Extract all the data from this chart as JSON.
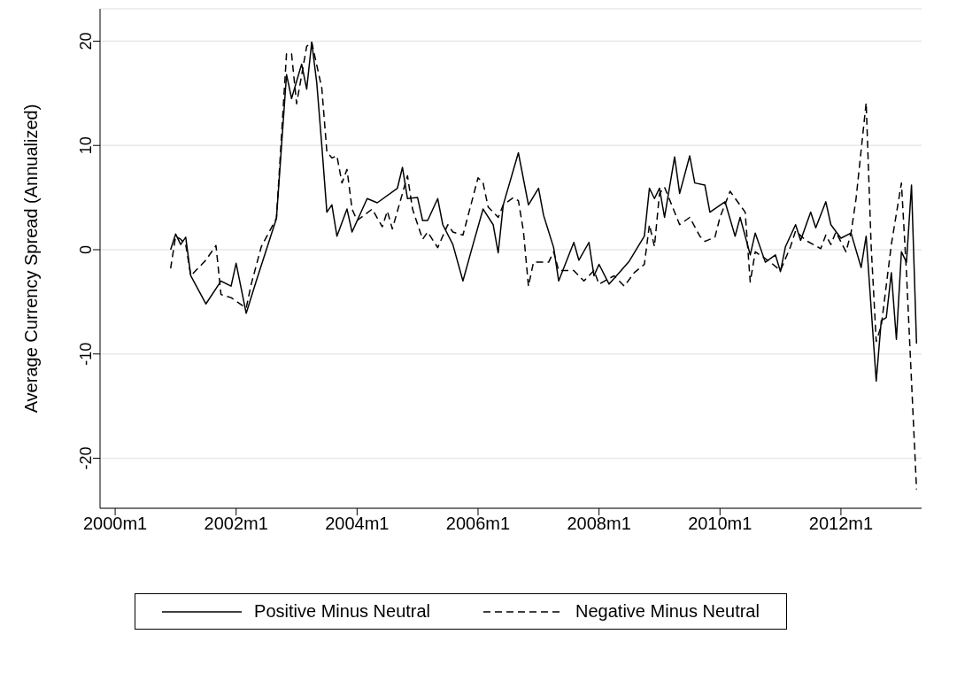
{
  "chart_data": {
    "type": "line",
    "ylabel": "Average Currency Spread (Annualized)",
    "xlim": [
      "1999-10",
      "2013-05"
    ],
    "xticks": [
      {
        "value": "2000-01",
        "label": "2000m1"
      },
      {
        "value": "2002-01",
        "label": "2002m1"
      },
      {
        "value": "2004-01",
        "label": "2004m1"
      },
      {
        "value": "2006-01",
        "label": "2006m1"
      },
      {
        "value": "2008-01",
        "label": "2008m1"
      },
      {
        "value": "2010-01",
        "label": "2010m1"
      },
      {
        "value": "2012-01",
        "label": "2012m1"
      }
    ],
    "ylim": [
      -24.8,
      23.1
    ],
    "yticks": [
      -20,
      -10,
      0,
      10,
      20
    ],
    "grid": "y",
    "legend": "bottom",
    "marker": "none",
    "series": [
      {
        "name": "Positive Minus Neutral",
        "color": "#000000",
        "line_style": "solid",
        "x": [
          "2000-12",
          "2001-01",
          "2001-02",
          "2001-03",
          "2001-04",
          "2001-07",
          "2001-10",
          "2001-12",
          "2002-01",
          "2002-03",
          "2002-05",
          "2002-07",
          "2002-09",
          "2002-11",
          "2002-12",
          "2003-02",
          "2003-03",
          "2003-04",
          "2003-05",
          "2003-06",
          "2003-07",
          "2003-08",
          "2003-09",
          "2003-11",
          "2003-12",
          "2004-03",
          "2004-05",
          "2004-09",
          "2004-10",
          "2004-11",
          "2005-01",
          "2005-02",
          "2005-03",
          "2005-05",
          "2005-06",
          "2005-08",
          "2005-10",
          "2005-12",
          "2006-02",
          "2006-04",
          "2006-05",
          "2006-06",
          "2006-09",
          "2006-11",
          "2007-01",
          "2007-02",
          "2007-04",
          "2007-05",
          "2007-08",
          "2007-09",
          "2007-11",
          "2007-12",
          "2008-01",
          "2008-03",
          "2008-05",
          "2008-07",
          "2008-10",
          "2008-11",
          "2008-12",
          "2009-01",
          "2009-02",
          "2009-04",
          "2009-05",
          "2009-07",
          "2009-08",
          "2009-10",
          "2009-11",
          "2010-02",
          "2010-04",
          "2010-05",
          "2010-07",
          "2010-08",
          "2010-10",
          "2010-12",
          "2011-01",
          "2011-02",
          "2011-04",
          "2011-05",
          "2011-07",
          "2011-08",
          "2011-10",
          "2011-11",
          "2012-01",
          "2012-03",
          "2012-05",
          "2012-06",
          "2012-08",
          "2012-09",
          "2012-10",
          "2012-11",
          "2012-12",
          "2013-01",
          "2013-02",
          "2013-03",
          "2013-04"
        ],
        "values": [
          0,
          1.5,
          0.5,
          1.2,
          -2.5,
          -5.2,
          -3,
          -3.5,
          -1.3,
          -6.1,
          -3,
          0,
          3,
          16.8,
          14.5,
          17.8,
          15.4,
          19.9,
          16,
          10,
          3.6,
          4.3,
          1.3,
          3.9,
          1.7,
          4.9,
          4.5,
          5.9,
          7.9,
          4.9,
          5,
          2.8,
          2.8,
          4.9,
          2.4,
          0.5,
          -3,
          0.5,
          3.9,
          2.4,
          -0.3,
          4.3,
          9.3,
          4.3,
          5.9,
          3.3,
          0.2,
          -3,
          0.7,
          -1,
          0.7,
          -2.5,
          -1.4,
          -3.3,
          -2.2,
          -1.1,
          1.3,
          5.9,
          4.9,
          5.9,
          3.1,
          8.9,
          5.4,
          9,
          6.4,
          6.2,
          3.6,
          4.6,
          1.3,
          3.1,
          -0.5,
          1.6,
          -1.2,
          -0.5,
          -2.1,
          0.3,
          2.4,
          0.9,
          3.6,
          2.1,
          4.6,
          2.4,
          1.1,
          1.6,
          -1.7,
          1.3,
          -12.6,
          -6.8,
          -6.5,
          -2.2,
          -8.6,
          -0.2,
          -1.2,
          6.2,
          -9
        ]
      },
      {
        "name": "Negative Minus Neutral",
        "color": "#000000",
        "line_style": "dashed",
        "x": [
          "2000-12",
          "2001-01",
          "2001-02",
          "2001-03",
          "2001-04",
          "2001-07",
          "2001-09",
          "2001-10",
          "2001-12",
          "2002-03",
          "2002-04",
          "2002-06",
          "2002-09",
          "2002-11",
          "2002-12",
          "2003-01",
          "2003-03",
          "2003-04",
          "2003-06",
          "2003-07",
          "2003-08",
          "2003-09",
          "2003-10",
          "2003-11",
          "2003-12",
          "2004-01",
          "2004-04",
          "2004-06",
          "2004-07",
          "2004-08",
          "2004-10",
          "2004-11",
          "2004-12",
          "2005-02",
          "2005-03",
          "2005-05",
          "2005-07",
          "2005-08",
          "2005-10",
          "2006-01",
          "2006-02",
          "2006-03",
          "2006-05",
          "2006-06",
          "2006-08",
          "2006-09",
          "2006-10",
          "2006-11",
          "2006-12",
          "2007-03",
          "2007-04",
          "2007-05",
          "2007-08",
          "2007-10",
          "2007-12",
          "2008-01",
          "2008-04",
          "2008-06",
          "2008-08",
          "2008-10",
          "2008-11",
          "2008-12",
          "2009-01",
          "2009-02",
          "2009-05",
          "2009-07",
          "2009-09",
          "2009-10",
          "2009-12",
          "2010-01",
          "2010-03",
          "2010-06",
          "2010-07",
          "2010-08",
          "2010-11",
          "2011-01",
          "2011-03",
          "2011-04",
          "2011-06",
          "2011-09",
          "2011-10",
          "2011-11",
          "2011-12",
          "2012-02",
          "2012-03",
          "2012-04",
          "2012-06",
          "2012-07",
          "2012-08",
          "2012-09",
          "2012-11",
          "2013-01",
          "2013-02",
          "2013-04"
        ],
        "values": [
          -1.8,
          1.3,
          1,
          0.5,
          -2.5,
          -1,
          0.4,
          -4.3,
          -4.6,
          -5.6,
          -3.3,
          0.3,
          3,
          18.8,
          18.8,
          14,
          19.5,
          19.9,
          15.5,
          9.4,
          8.8,
          9,
          6.4,
          7.7,
          3.9,
          2.8,
          3.9,
          2.2,
          3.7,
          2,
          5.4,
          7.1,
          3.9,
          1,
          1.7,
          0.2,
          2.4,
          1.7,
          1.4,
          6.9,
          6.4,
          4.1,
          3.1,
          4.3,
          5,
          4.7,
          1.8,
          -3.5,
          -1.2,
          -1.2,
          -0.2,
          -2,
          -2,
          -3,
          -2,
          -3.3,
          -2.5,
          -3.5,
          -2.2,
          -1.4,
          2.4,
          0.3,
          5.4,
          6,
          2.4,
          3.1,
          1.3,
          0.8,
          1.2,
          3.1,
          5.6,
          3.6,
          -3.1,
          -0.2,
          -1.2,
          -2,
          0.3,
          1.8,
          0.9,
          0.1,
          1.4,
          0.5,
          1.7,
          -0.2,
          1.6,
          4.9,
          14.1,
          0.3,
          -8.8,
          -7.3,
          0.5,
          6.4,
          -2.2,
          -23
        ]
      }
    ]
  }
}
